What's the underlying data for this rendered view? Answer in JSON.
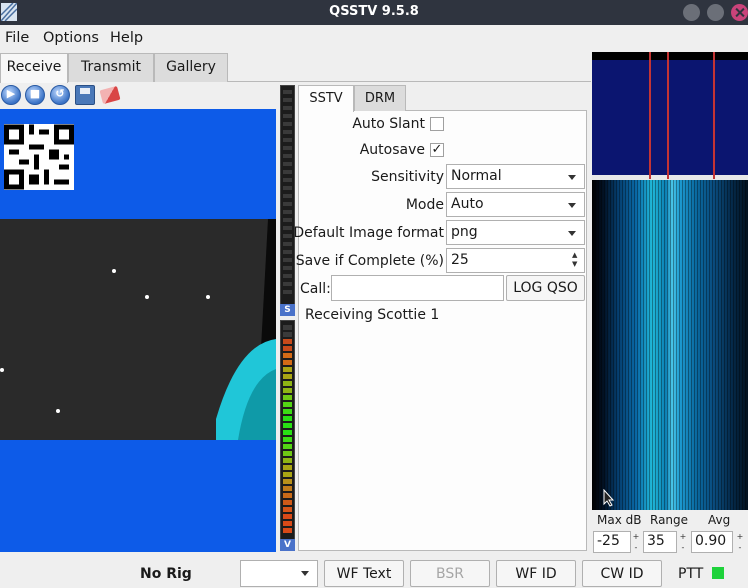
{
  "window": {
    "title": "QSSTV 9.5.8"
  },
  "menu": {
    "file": "File",
    "options": "Options",
    "help": "Help"
  },
  "main_tabs": [
    {
      "label": "Receive",
      "active": true
    },
    {
      "label": "Transmit",
      "active": false
    },
    {
      "label": "Gallery",
      "active": false
    }
  ],
  "toolbar": {
    "icons": [
      "play-icon",
      "stop-icon",
      "reload-icon",
      "save-icon",
      "eraser-icon"
    ]
  },
  "meters": {
    "sync_label": "S",
    "volume_label": "V"
  },
  "inner_tabs": [
    {
      "label": "SSTV",
      "active": true
    },
    {
      "label": "DRM",
      "active": false
    }
  ],
  "settings": {
    "auto_slant": {
      "label": "Auto Slant",
      "checked": false
    },
    "autosave": {
      "label": "Autosave",
      "checked": true,
      "mark": "✓"
    },
    "sensitivity": {
      "label": "Sensitivity",
      "value": "Normal"
    },
    "mode": {
      "label": "Mode",
      "value": "Auto"
    },
    "image_format": {
      "label": "Default Image format",
      "value": "png"
    },
    "save_if_complete": {
      "label": "Save if Complete (%)",
      "value": "25"
    },
    "call": {
      "label": "Call:",
      "value": ""
    },
    "log_qso": "LOG QSO",
    "status": "Receiving Scottie 1"
  },
  "waterfall_controls": {
    "max_db": {
      "label": "Max dB",
      "value": "-25"
    },
    "range": {
      "label": "Range",
      "value": "35"
    },
    "avg": {
      "label": "Avg",
      "value": "0.90"
    }
  },
  "statusbar": {
    "rig": "No Rig",
    "combo_value": "",
    "wf_text": "WF Text",
    "bsr": "BSR",
    "wf_id": "WF ID",
    "cw_id": "CW ID",
    "ptt": "PTT"
  },
  "colors": {
    "image_blue": "#0d5be8",
    "ptt_green": "#1ed23b",
    "titlebar": "#2f343f"
  }
}
